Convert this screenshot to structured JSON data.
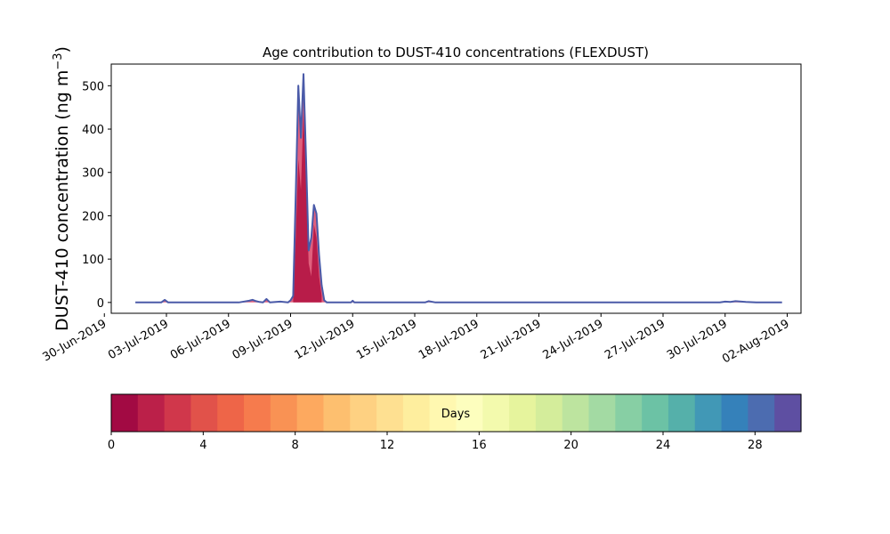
{
  "chart_data": {
    "type": "area",
    "title": "Age contribution to DUST-410 concentrations (FLEXDUST)",
    "ylabel": "DUST-410 concentration (ng m",
    "ylabel_sup": "−3",
    "ylabel_close": ")",
    "xlabel": "",
    "ylim": [
      -25,
      550
    ],
    "xlim": [
      "2019-06-30T08:00",
      "2019-08-02T16:00"
    ],
    "grid": false,
    "y_ticks": [
      0,
      100,
      200,
      300,
      400,
      500
    ],
    "x_ticks": [
      {
        "date": "2019-06-30",
        "label": "30-Jun-2019"
      },
      {
        "date": "2019-07-03",
        "label": "03-Jul-2019"
      },
      {
        "date": "2019-07-06",
        "label": "06-Jul-2019"
      },
      {
        "date": "2019-07-09",
        "label": "09-Jul-2019"
      },
      {
        "date": "2019-07-12",
        "label": "12-Jul-2019"
      },
      {
        "date": "2019-07-15",
        "label": "15-Jul-2019"
      },
      {
        "date": "2019-07-18",
        "label": "18-Jul-2019"
      },
      {
        "date": "2019-07-21",
        "label": "21-Jul-2019"
      },
      {
        "date": "2019-07-24",
        "label": "24-Jul-2019"
      },
      {
        "date": "2019-07-27",
        "label": "27-Jul-2019"
      },
      {
        "date": "2019-07-30",
        "label": "30-Jul-2019"
      },
      {
        "date": "2019-08-02",
        "label": "02-Aug-2019"
      }
    ],
    "total_series": {
      "x": [
        "2019-07-01T12:00",
        "2019-07-02T18:00",
        "2019-07-02T22:00",
        "2019-07-03T02:00",
        "2019-07-04T00:00",
        "2019-07-06T12:00",
        "2019-07-07T00:00",
        "2019-07-07T04:00",
        "2019-07-07T08:00",
        "2019-07-07T12:00",
        "2019-07-07T16:00",
        "2019-07-07T20:00",
        "2019-07-08T00:00",
        "2019-07-08T12:00",
        "2019-07-08T21:00",
        "2019-07-09T00:00",
        "2019-07-09T03:00",
        "2019-07-09T06:00",
        "2019-07-09T09:00",
        "2019-07-09T12:00",
        "2019-07-09T15:00",
        "2019-07-09T18:00",
        "2019-07-09T21:00",
        "2019-07-10T00:00",
        "2019-07-10T03:00",
        "2019-07-10T06:00",
        "2019-07-10T09:00",
        "2019-07-10T12:00",
        "2019-07-10T15:00",
        "2019-07-10T18:00",
        "2019-07-10T21:00",
        "2019-07-11T00:00",
        "2019-07-11T12:00",
        "2019-07-11T22:00",
        "2019-07-12T00:00",
        "2019-07-12T02:00",
        "2019-07-13T00:00",
        "2019-07-15T00:00",
        "2019-07-15T12:00",
        "2019-07-15T16:00",
        "2019-07-16T00:00",
        "2019-07-25T00:00",
        "2019-07-29T12:00",
        "2019-07-29T18:00",
        "2019-07-30T00:00",
        "2019-07-30T06:00",
        "2019-07-30T12:00",
        "2019-07-31T00:00",
        "2019-07-31T12:00",
        "2019-08-01T00:00",
        "2019-08-01T18:00"
      ],
      "y": [
        0,
        0,
        6,
        0,
        0,
        0,
        4,
        6,
        3,
        1,
        0,
        8,
        0,
        2,
        0,
        5,
        15,
        250,
        500,
        380,
        527,
        330,
        120,
        150,
        225,
        205,
        110,
        40,
        5,
        0,
        0,
        0,
        0,
        0,
        4,
        0,
        0,
        0,
        0,
        3,
        0,
        0,
        0,
        0,
        2,
        1,
        3,
        1,
        0,
        0,
        0
      ]
    },
    "inner_series": {
      "x": [
        "2019-07-09T03:00",
        "2019-07-09T06:00",
        "2019-07-09T09:00",
        "2019-07-09T12:00",
        "2019-07-09T15:00",
        "2019-07-09T18:00",
        "2019-07-09T21:00",
        "2019-07-10T00:00",
        "2019-07-10T03:00",
        "2019-07-10T06:00",
        "2019-07-10T09:00",
        "2019-07-10T12:00"
      ],
      "y": [
        5,
        150,
        330,
        260,
        440,
        280,
        90,
        60,
        180,
        150,
        60,
        15
      ]
    },
    "colorbar": {
      "label": "Days",
      "range": [
        0,
        30
      ],
      "bins": 30,
      "ticks": [
        0,
        4,
        8,
        12,
        16,
        20,
        24,
        28
      ],
      "colors": [
        "#a20a43",
        "#bb2049",
        "#d0374b",
        "#e1524a",
        "#ee6548",
        "#f67b4d",
        "#f99254",
        "#fda95f",
        "#fdbf6f",
        "#fed182",
        "#fee091",
        "#feee9e",
        "#fff8b0",
        "#fdfebe",
        "#f3faad",
        "#e6f49d",
        "#d4ed9b",
        "#bde49f",
        "#a3daa3",
        "#87cfa4",
        "#6cc2a5",
        "#55b0aa",
        "#4198b6",
        "#3581ba",
        "#4c6cb0",
        "#5e4fa2"
      ]
    },
    "colors": {
      "outline": "#4a5aa8",
      "total_fill": "#e0607d",
      "inner_fill": "#b0103f",
      "baseline": "#7a6cb0"
    }
  }
}
